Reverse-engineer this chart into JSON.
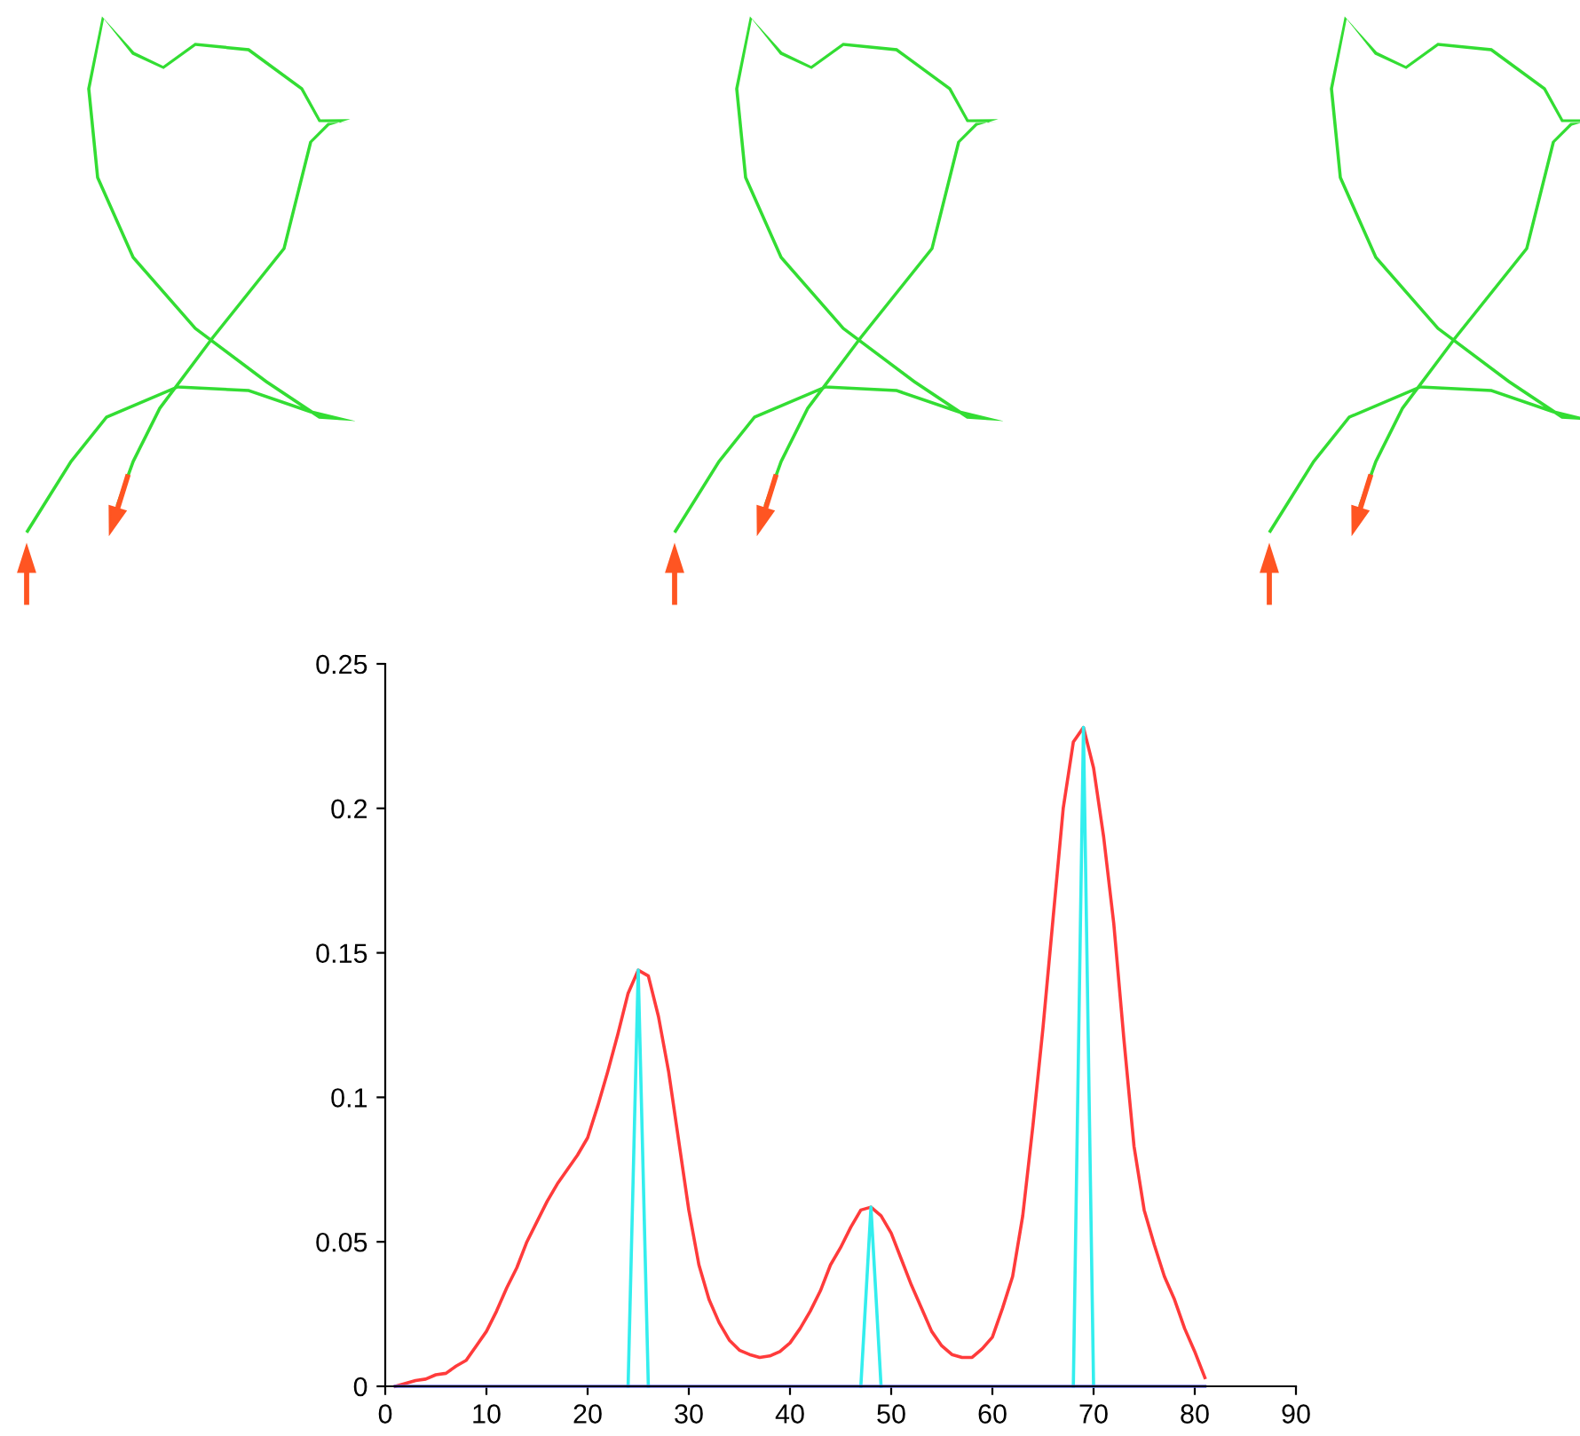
{
  "chart_data": {
    "type": "line",
    "xlim": [
      0,
      90
    ],
    "ylim": [
      0,
      0.25
    ],
    "xticks": [
      0,
      10,
      20,
      30,
      40,
      50,
      60,
      70,
      80,
      90
    ],
    "yticks": [
      0,
      0.05,
      0.1,
      0.15,
      0.2,
      0.25
    ],
    "grid": false,
    "legend": false,
    "marker": "none",
    "line_style": "solid",
    "series": [
      {
        "color": "#ff3b3b",
        "x": [
          1,
          2,
          3,
          4,
          5,
          6,
          7,
          8,
          9,
          10,
          11,
          12,
          13,
          14,
          15,
          16,
          17,
          18,
          19,
          20,
          21,
          22,
          23,
          24,
          25,
          26,
          27,
          28,
          29,
          30,
          31,
          32,
          33,
          34,
          35,
          36,
          37,
          38,
          39,
          40,
          41,
          42,
          43,
          44,
          45,
          46,
          47,
          48,
          49,
          50,
          51,
          52,
          53,
          54,
          55,
          56,
          57,
          58,
          59,
          60,
          61,
          62,
          63,
          64,
          65,
          66,
          67,
          68,
          69,
          70,
          71,
          72,
          73,
          74,
          75,
          76,
          77,
          78,
          79,
          80,
          81
        ],
        "values": [
          0,
          0.001,
          0.002,
          0.0025,
          0.004,
          0.0045,
          0.007,
          0.009,
          0.014,
          0.019,
          0.026,
          0.034,
          0.041,
          0.05,
          0.057,
          0.064,
          0.07,
          0.075,
          0.08,
          0.086,
          0.097,
          0.109,
          0.122,
          0.136,
          0.144,
          0.142,
          0.128,
          0.109,
          0.085,
          0.061,
          0.042,
          0.03,
          0.022,
          0.016,
          0.0125,
          0.011,
          0.01,
          0.0105,
          0.012,
          0.015,
          0.02,
          0.026,
          0.033,
          0.042,
          0.048,
          0.055,
          0.061,
          0.062,
          0.059,
          0.053,
          0.044,
          0.035,
          0.027,
          0.019,
          0.014,
          0.011,
          0.01,
          0.01,
          0.013,
          0.017,
          0.027,
          0.038,
          0.059,
          0.09,
          0.124,
          0.162,
          0.2,
          0.223,
          0.228,
          0.214,
          0.19,
          0.16,
          0.12,
          0.083,
          0.061,
          0.049,
          0.038,
          0.03,
          0.02,
          0.012,
          0.003
        ]
      },
      {
        "color": "#33eeee",
        "x": [
          24,
          25,
          26,
          36,
          47,
          48,
          49,
          58,
          68,
          69,
          70
        ],
        "values": [
          0,
          0.144,
          0,
          null,
          0,
          0.062,
          0,
          null,
          0,
          0.228,
          0
        ]
      },
      {
        "color": "#6a6ae8",
        "x": [
          1,
          81
        ],
        "values": [
          0,
          0
        ]
      }
    ]
  }
}
